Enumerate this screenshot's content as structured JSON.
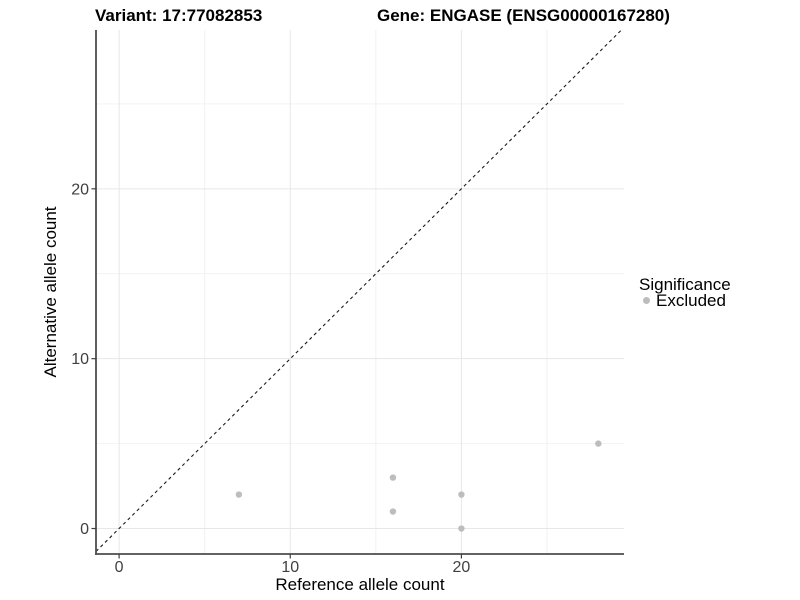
{
  "titles": {
    "variant": "Variant: 17:77082853",
    "gene": "Gene: ENGASE (ENSG00000167280)"
  },
  "chart_data": {
    "type": "scatter",
    "title_left": "Variant: 17:77082853",
    "title_right": "Gene: ENGASE (ENSG00000167280)",
    "xlabel": "Reference allele count",
    "ylabel": "Alternative allele count",
    "x_ticks": [
      0,
      10,
      20
    ],
    "y_ticks": [
      0,
      10,
      20
    ],
    "x_minor_ticks": [
      5,
      15,
      25
    ],
    "y_minor_ticks": [
      5,
      15,
      25
    ],
    "xlim": [
      -1.35,
      29.5
    ],
    "ylim": [
      -1.5,
      29.35
    ],
    "grid": true,
    "series": [
      {
        "name": "Excluded",
        "color": "#bdbdbd",
        "points": [
          [
            7,
            2
          ],
          [
            16,
            3
          ],
          [
            16,
            1
          ],
          [
            20,
            2
          ],
          [
            20,
            0
          ],
          [
            28,
            5
          ]
        ]
      }
    ],
    "identity_line": {
      "slope": 1,
      "intercept": 0,
      "style": "dashed",
      "color": "#1a1a1a"
    },
    "legend": {
      "position": "right",
      "title": "Significance",
      "entries": [
        {
          "label": "Excluded",
          "color": "#bdbdbd"
        }
      ]
    }
  },
  "colors": {
    "background": "#ffffff",
    "point": "#bdbdbd",
    "grid_major": "#e7e7e7",
    "grid_minor": "#f2f2f2",
    "axis_line": "#4d4d4d",
    "tick_mark": "#404040",
    "dashed_line": "#1a1a1a",
    "title_text": "#000000",
    "tick_text": "#404040"
  }
}
